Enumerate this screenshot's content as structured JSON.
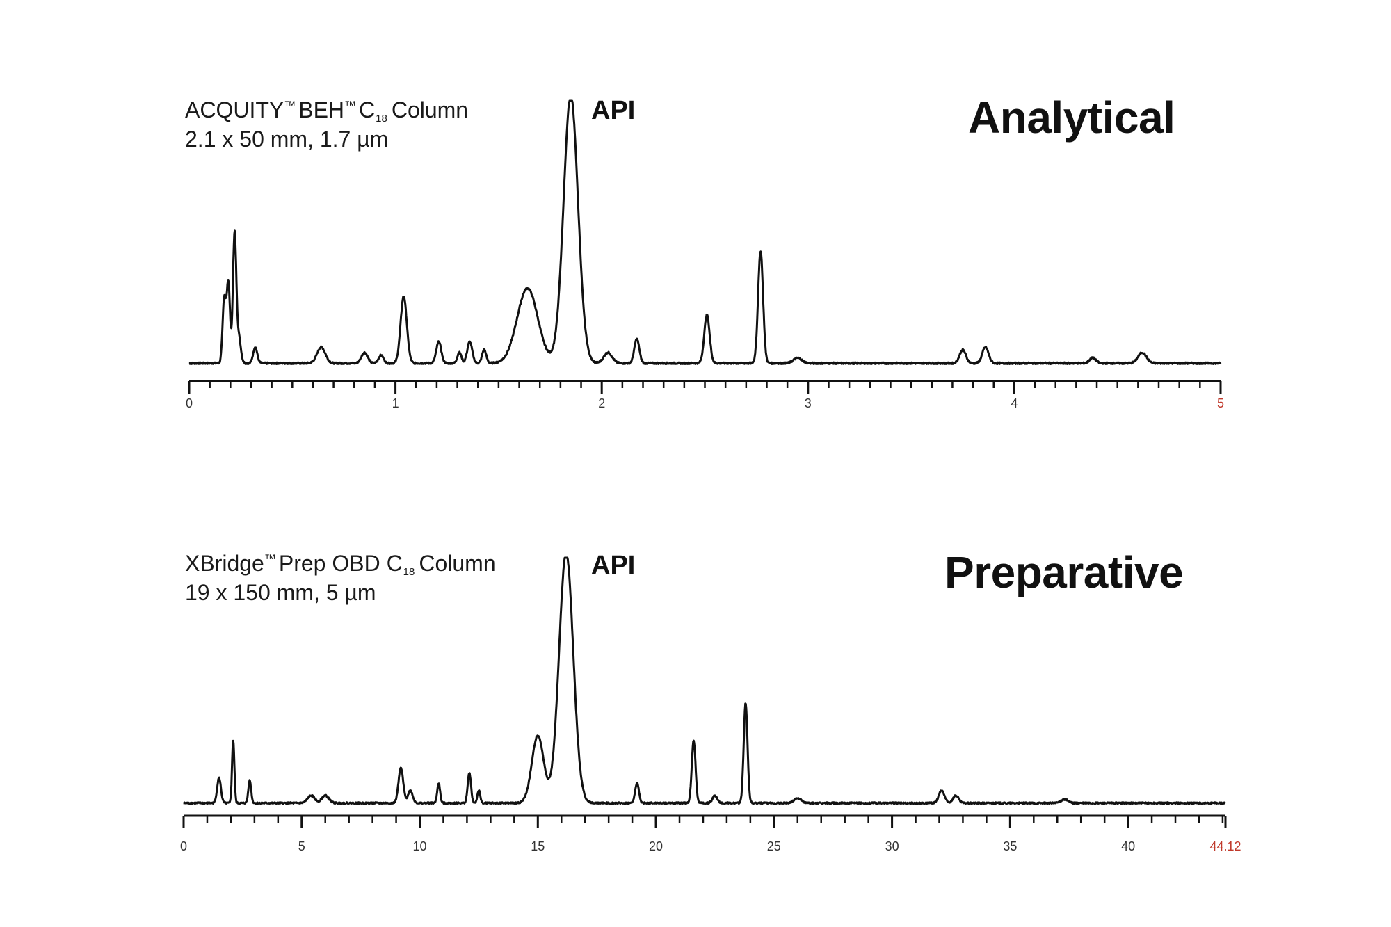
{
  "analytical": {
    "column_name_main": "ACQUITY",
    "column_name_tm1": "™",
    "column_name_mid": "BEH",
    "column_name_tm2": "™",
    "column_name_c": "C",
    "column_name_sub": "18",
    "column_name_tail": "Column",
    "column_dims": "2.1 x 50 mm, 1.7 µm",
    "api_label": "API",
    "mode_title": "Analytical"
  },
  "preparative": {
    "column_name_main": "XBridge",
    "column_name_tm1": "™",
    "column_name_mid": "Prep OBD C",
    "column_name_sub": "18",
    "column_name_tail": "Column",
    "column_dims": "19 x 150 mm, 5 µm",
    "api_label": "API",
    "mode_title": "Preparative"
  },
  "colors": {
    "trace": "#111111",
    "axis": "#111111",
    "end_label": "#c0392b"
  },
  "chart_data": [
    {
      "type": "line",
      "title": "Analytical",
      "xlabel": "",
      "ylabel": "",
      "xlim": [
        0,
        5
      ],
      "ylim": [
        0,
        100
      ],
      "grid": false,
      "x_ticks": [
        0,
        1,
        2,
        3,
        4,
        5
      ],
      "x_tick_labels": [
        "0",
        "1",
        "2",
        "3",
        "4",
        "5"
      ],
      "end_label_color": "#c0392b",
      "baseline": 2,
      "clipped_top": 100,
      "peaks": [
        {
          "rt": 0.17,
          "h": 24,
          "w": 0.008
        },
        {
          "rt": 0.19,
          "h": 30,
          "w": 0.008
        },
        {
          "rt": 0.22,
          "h": 48,
          "w": 0.008
        },
        {
          "rt": 0.24,
          "h": 10,
          "w": 0.01
        },
        {
          "rt": 0.32,
          "h": 6,
          "w": 0.01
        },
        {
          "rt": 0.64,
          "h": 6,
          "w": 0.02
        },
        {
          "rt": 0.85,
          "h": 4,
          "w": 0.015
        },
        {
          "rt": 0.93,
          "h": 3,
          "w": 0.012
        },
        {
          "rt": 1.04,
          "h": 25,
          "w": 0.015
        },
        {
          "rt": 1.21,
          "h": 8,
          "w": 0.012
        },
        {
          "rt": 1.31,
          "h": 4,
          "w": 0.01
        },
        {
          "rt": 1.36,
          "h": 8,
          "w": 0.012
        },
        {
          "rt": 1.43,
          "h": 5,
          "w": 0.01
        },
        {
          "rt": 1.64,
          "h": 28,
          "w": 0.05
        },
        {
          "rt": 1.85,
          "h": 100,
          "w": 0.035
        },
        {
          "rt": 2.03,
          "h": 4,
          "w": 0.02
        },
        {
          "rt": 2.17,
          "h": 9,
          "w": 0.012
        },
        {
          "rt": 2.51,
          "h": 18,
          "w": 0.013
        },
        {
          "rt": 2.77,
          "h": 42,
          "w": 0.012
        },
        {
          "rt": 2.95,
          "h": 2,
          "w": 0.02
        },
        {
          "rt": 3.75,
          "h": 5,
          "w": 0.015
        },
        {
          "rt": 3.86,
          "h": 6,
          "w": 0.015
        },
        {
          "rt": 4.38,
          "h": 2,
          "w": 0.015
        },
        {
          "rt": 4.62,
          "h": 4,
          "w": 0.02
        }
      ]
    },
    {
      "type": "line",
      "title": "Preparative",
      "xlabel": "",
      "ylabel": "",
      "xlim": [
        0,
        44.12
      ],
      "ylim": [
        0,
        100
      ],
      "grid": false,
      "x_ticks": [
        0,
        5,
        10,
        15,
        20,
        25,
        30,
        35,
        40,
        44.12
      ],
      "x_tick_labels": [
        "0",
        "5",
        "10",
        "15",
        "20",
        "25",
        "30",
        "35",
        "40",
        "44.12"
      ],
      "end_label_color": "#c0392b",
      "baseline": 2,
      "clipped_top": 100,
      "peaks": [
        {
          "rt": 1.5,
          "h": 10,
          "w": 0.08
        },
        {
          "rt": 2.1,
          "h": 25,
          "w": 0.05
        },
        {
          "rt": 2.8,
          "h": 9,
          "w": 0.06
        },
        {
          "rt": 5.4,
          "h": 3,
          "w": 0.15
        },
        {
          "rt": 6.0,
          "h": 3,
          "w": 0.15
        },
        {
          "rt": 9.2,
          "h": 14,
          "w": 0.1
        },
        {
          "rt": 9.6,
          "h": 5,
          "w": 0.1
        },
        {
          "rt": 10.8,
          "h": 8,
          "w": 0.06
        },
        {
          "rt": 12.1,
          "h": 12,
          "w": 0.07
        },
        {
          "rt": 12.5,
          "h": 5,
          "w": 0.06
        },
        {
          "rt": 15.0,
          "h": 27,
          "w": 0.25
        },
        {
          "rt": 16.2,
          "h": 100,
          "w": 0.3
        },
        {
          "rt": 19.2,
          "h": 8,
          "w": 0.08
        },
        {
          "rt": 21.6,
          "h": 25,
          "w": 0.08
        },
        {
          "rt": 22.5,
          "h": 3,
          "w": 0.1
        },
        {
          "rt": 23.8,
          "h": 40,
          "w": 0.08
        },
        {
          "rt": 26.0,
          "h": 2,
          "w": 0.15
        },
        {
          "rt": 32.1,
          "h": 5,
          "w": 0.12
        },
        {
          "rt": 32.7,
          "h": 3,
          "w": 0.12
        },
        {
          "rt": 37.3,
          "h": 1.5,
          "w": 0.15
        }
      ]
    }
  ]
}
